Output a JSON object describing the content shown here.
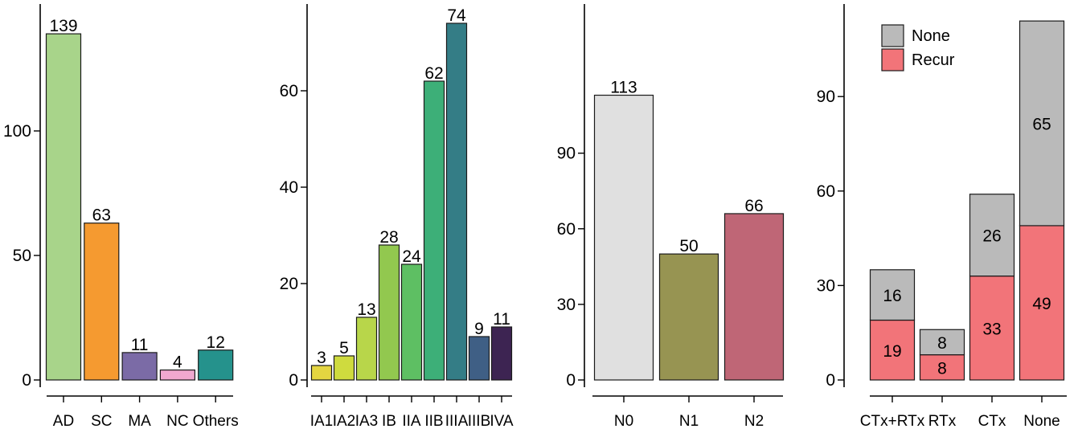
{
  "chart_data": [
    {
      "type": "bar",
      "categories": [
        "AD",
        "SC",
        "MA",
        "NC",
        "Others"
      ],
      "values": [
        139,
        63,
        11,
        4,
        12
      ],
      "colors": [
        "#a8d48a",
        "#f59a30",
        "#7b6ba6",
        "#f0a8cf",
        "#25928c"
      ],
      "yticks": [
        0,
        50,
        100
      ],
      "ylim": [
        0,
        140
      ]
    },
    {
      "type": "bar",
      "categories": [
        "IA1",
        "IA2",
        "IA3",
        "IB",
        "IIA",
        "IIB",
        "IIIA",
        "IIIB",
        "IVA"
      ],
      "values": [
        3,
        5,
        13,
        28,
        24,
        62,
        74,
        9,
        11
      ],
      "colors": [
        "#e4d541",
        "#cfdb3e",
        "#b8d64a",
        "#92c84f",
        "#5ebf63",
        "#3daf78",
        "#347d86",
        "#3f5f85",
        "#3d2452"
      ],
      "yticks": [
        0,
        20,
        40,
        60
      ],
      "ylim": [
        0,
        75
      ]
    },
    {
      "type": "bar",
      "categories": [
        "N0",
        "N1",
        "N2"
      ],
      "values": [
        113,
        50,
        66
      ],
      "colors": [
        "#e0e0e0",
        "#979452",
        "#bf6676"
      ],
      "yticks": [
        0,
        30,
        60,
        90
      ],
      "ylim": [
        0,
        115
      ]
    },
    {
      "type": "stacked-bar",
      "categories": [
        "CTx+RTx",
        "RTx",
        "CTx",
        "None"
      ],
      "series": [
        {
          "name": "Recur",
          "values": [
            19,
            8,
            33,
            49
          ],
          "color": "#f27479"
        },
        {
          "name": "None",
          "values": [
            16,
            8,
            26,
            65
          ],
          "color": "#bababa"
        }
      ],
      "legend": {
        "placement": "top-left",
        "order": [
          "None",
          "Recur"
        ]
      },
      "yticks": [
        0,
        30,
        60,
        90
      ],
      "ylim": [
        0,
        115
      ]
    }
  ]
}
